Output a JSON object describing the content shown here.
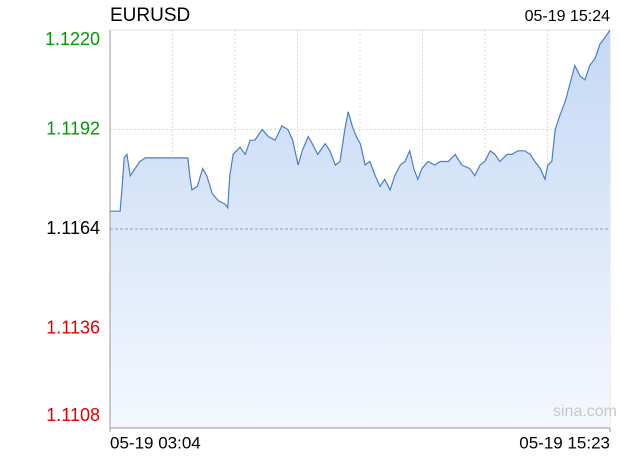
{
  "chart_data": {
    "type": "area",
    "title": "EURUSD",
    "timestamp": "05-19 15:24",
    "watermark": "sina.com",
    "baseline": 1.1164,
    "up_color": "#009900",
    "down_color": "#e00000",
    "color": "#4a7ec8",
    "grid": true,
    "xlim": [
      0,
      739
    ],
    "xticks": [
      {
        "value": 0,
        "label": "05-19 03:04"
      },
      {
        "value": 739,
        "label": "05-19 15:23"
      }
    ],
    "ylim": [
      1.1108,
      1.122
    ],
    "yticks": [
      {
        "value": 1.122,
        "label": "1.1220"
      },
      1.1192,
      1.1164,
      1.1136,
      1.1108
    ],
    "x": [
      0,
      7,
      15,
      18,
      21,
      25,
      30,
      37,
      44,
      52,
      59,
      74,
      89,
      103,
      115,
      118,
      121,
      129,
      137,
      143,
      151,
      160,
      170,
      174,
      177,
      182,
      192,
      200,
      207,
      214,
      225,
      234,
      244,
      254,
      263,
      270,
      278,
      284,
      293,
      299,
      307,
      318,
      325,
      333,
      340,
      347,
      352,
      358,
      364,
      370,
      377,
      384,
      392,
      399,
      406,
      414,
      421,
      429,
      436,
      443,
      449,
      455,
      461,
      470,
      480,
      488,
      500,
      510,
      520,
      532,
      539,
      547,
      554,
      562,
      569,
      576,
      587,
      594,
      603,
      613,
      621,
      628,
      636,
      643,
      647,
      653,
      658,
      665,
      673,
      680,
      687,
      695,
      702,
      709,
      717,
      724,
      732,
      739
    ],
    "values": [
      1.1169,
      1.1169,
      1.1169,
      1.1176,
      1.1184,
      1.1185,
      1.1179,
      1.1181,
      1.1183,
      1.1184,
      1.1184,
      1.1184,
      1.1184,
      1.1184,
      1.1184,
      1.1179,
      1.1175,
      1.1176,
      1.1181,
      1.1179,
      1.1174,
      1.1172,
      1.1171,
      1.117,
      1.1179,
      1.1185,
      1.1187,
      1.1185,
      1.1189,
      1.1189,
      1.1192,
      1.119,
      1.1189,
      1.1193,
      1.1192,
      1.1189,
      1.1182,
      1.1186,
      1.119,
      1.1188,
      1.1185,
      1.1188,
      1.1186,
      1.1182,
      1.1183,
      1.1192,
      1.1197,
      1.1193,
      1.119,
      1.1188,
      1.1182,
      1.1183,
      1.1179,
      1.1176,
      1.1178,
      1.1175,
      1.1179,
      1.1182,
      1.1183,
      1.1186,
      1.1181,
      1.1178,
      1.1181,
      1.1183,
      1.1182,
      1.1183,
      1.1183,
      1.1185,
      1.1182,
      1.1181,
      1.1179,
      1.1182,
      1.1183,
      1.1186,
      1.1185,
      1.1183,
      1.1185,
      1.1185,
      1.1186,
      1.1186,
      1.1185,
      1.1183,
      1.1181,
      1.1178,
      1.1182,
      1.1183,
      1.1192,
      1.1196,
      1.12,
      1.1205,
      1.121,
      1.1207,
      1.1206,
      1.121,
      1.1212,
      1.1216,
      1.1218,
      1.122
    ]
  }
}
